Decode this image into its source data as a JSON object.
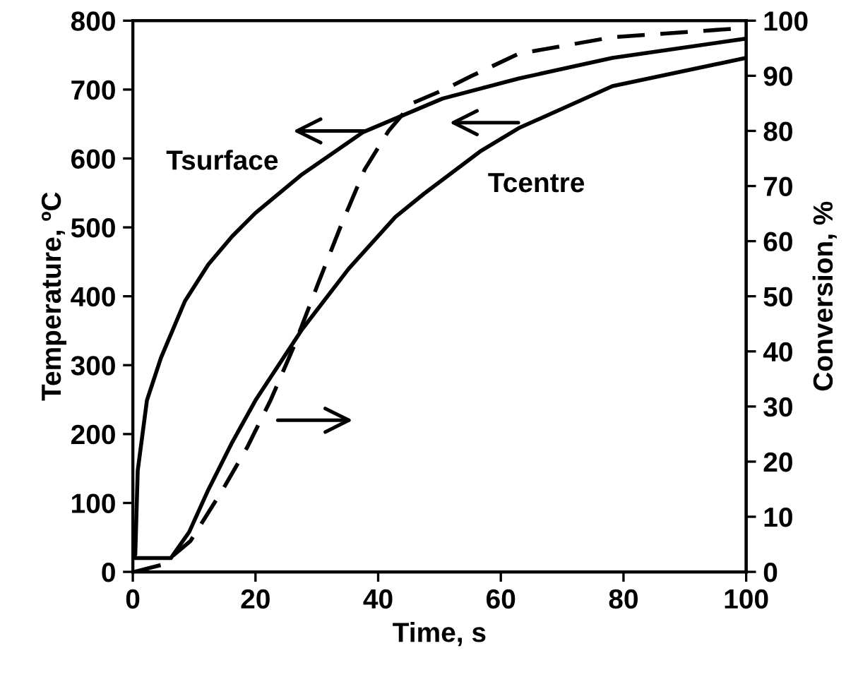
{
  "chart_data": {
    "type": "line",
    "xlabel": "Time, s",
    "ylabel": "Temperature, ºC",
    "y2label": "Conversion, %",
    "xlim": [
      0,
      100
    ],
    "xticks": [
      0,
      20,
      40,
      60,
      80,
      100
    ],
    "ylim": [
      0,
      800
    ],
    "yticks": [
      0,
      100,
      200,
      300,
      400,
      500,
      600,
      700,
      800
    ],
    "y2lim": [
      0,
      100
    ],
    "y2ticks": [
      0,
      10,
      20,
      30,
      40,
      50,
      60,
      70,
      80,
      90,
      100
    ],
    "grid": false,
    "legend": false,
    "marker": "none",
    "series": [
      {
        "name": "Tsurface",
        "color": "#000000",
        "line_style": "solid",
        "x": [
          0,
          0.4,
          0.8,
          2.3,
          4.6,
          8.5,
          12.3,
          16.2,
          20,
          27.6,
          37.5,
          50.5,
          62.9,
          78.2,
          100
        ],
        "values": [
          20,
          25,
          147,
          249,
          311,
          393,
          446,
          487,
          521,
          577,
          638,
          687,
          716,
          746,
          774
        ]
      },
      {
        "name": "Tcentre",
        "color": "#000000",
        "line_style": "solid",
        "x": [
          0,
          6.2,
          9.2,
          12.3,
          16.2,
          20,
          27.6,
          35.2,
          42.8,
          47.5,
          56.6,
          62.9,
          78.2,
          100
        ],
        "values": [
          20,
          20,
          58,
          119,
          188,
          249,
          352,
          440,
          515,
          549,
          610,
          644,
          705,
          746
        ]
      },
      {
        "color": "#000000",
        "line_style": "dashed",
        "axis": "y2",
        "x": [
          0.2,
          4.8,
          9.4,
          14.7,
          18.6,
          22.4,
          26.3,
          30.1,
          34,
          37.8,
          41.7,
          45.5,
          50.8,
          55.3,
          62.9,
          78.2,
          100
        ],
        "values": [
          0,
          1.3,
          5.6,
          15,
          22.5,
          31,
          41,
          52,
          63,
          73,
          80,
          85,
          87.5,
          90,
          94,
          97,
          98.7
        ]
      }
    ]
  }
}
